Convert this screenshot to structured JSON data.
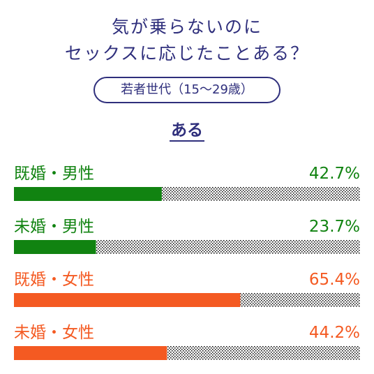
{
  "title_lines": [
    "気が乗らないのに",
    "セックスに応じたことある？"
  ],
  "group_label": "若者世代（15〜29歳）",
  "answer_label": "ある",
  "chart_data": {
    "type": "bar",
    "orientation": "horizontal",
    "unit": "%",
    "xlim": [
      0,
      100
    ],
    "categories": [
      "既婚・男性",
      "未婚・男性",
      "既婚・女性",
      "未婚・女性"
    ],
    "values": [
      42.7,
      23.7,
      65.4,
      44.2
    ],
    "value_labels": [
      "42.7%",
      "23.7%",
      "65.4%",
      "44.2%"
    ],
    "colors": [
      "#118311",
      "#118311",
      "#f45a22",
      "#f45a22"
    ],
    "remainder_pattern": "dotted"
  }
}
